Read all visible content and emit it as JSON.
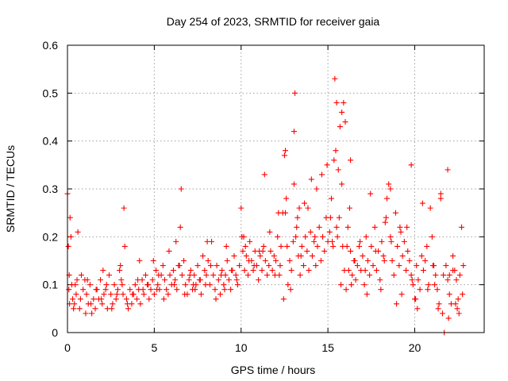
{
  "chart_data": {
    "type": "scatter",
    "title": "Day 254 of 2023, SRMTID for receiver gaia",
    "xlabel": "GPS time / hours",
    "ylabel": "SRMTID / TECUs",
    "xlim": [
      0,
      24
    ],
    "ylim": [
      0,
      0.6
    ],
    "xticks": [
      0,
      5,
      10,
      15,
      20
    ],
    "yticks": [
      0,
      0.1,
      0.2,
      0.3,
      0.4,
      0.5,
      0.6
    ],
    "grid": true,
    "marker": "+",
    "color": "#ff0000",
    "series": [
      {
        "name": "SRMTID",
        "x": [
          0.0,
          0.05,
          0.1,
          0.15,
          0.2,
          0.25,
          0.3,
          0.4,
          0.5,
          0.6,
          0.7,
          0.8,
          0.9,
          1.0,
          1.1,
          1.2,
          1.3,
          1.4,
          1.5,
          1.6,
          1.7,
          1.8,
          1.9,
          2.0,
          2.1,
          2.2,
          2.3,
          2.4,
          2.5,
          2.6,
          2.7,
          2.8,
          2.9,
          3.0,
          3.1,
          3.2,
          3.25,
          3.3,
          3.4,
          3.5,
          3.6,
          3.7,
          3.8,
          3.9,
          4.0,
          4.1,
          4.2,
          4.3,
          4.4,
          4.5,
          4.6,
          4.7,
          4.8,
          4.9,
          5.0,
          5.1,
          5.2,
          5.3,
          5.4,
          5.5,
          5.6,
          5.7,
          5.8,
          5.9,
          6.0,
          6.1,
          6.2,
          6.3,
          6.4,
          6.5,
          6.55,
          6.6,
          6.7,
          6.8,
          6.9,
          7.0,
          7.1,
          7.2,
          7.3,
          7.4,
          7.5,
          7.6,
          7.7,
          7.8,
          7.9,
          8.0,
          8.1,
          8.2,
          8.3,
          8.4,
          8.5,
          8.6,
          8.7,
          8.8,
          8.9,
          9.0,
          9.1,
          9.2,
          9.3,
          9.4,
          9.5,
          9.6,
          9.7,
          9.8,
          9.9,
          10.0,
          10.05,
          10.1,
          10.2,
          10.3,
          10.4,
          10.5,
          10.6,
          10.7,
          10.8,
          10.9,
          11.0,
          11.1,
          11.2,
          11.3,
          11.4,
          11.5,
          11.6,
          11.7,
          11.8,
          11.9,
          12.0,
          12.1,
          12.2,
          12.3,
          12.4,
          12.5,
          12.6,
          12.7,
          12.8,
          12.9,
          13.0,
          13.05,
          13.1,
          13.2,
          13.3,
          13.4,
          13.5,
          13.6,
          13.7,
          13.8,
          13.9,
          14.0,
          14.1,
          14.2,
          14.3,
          14.4,
          14.5,
          14.6,
          14.7,
          14.8,
          14.9,
          15.0,
          15.1,
          15.2,
          15.3,
          15.35,
          15.4,
          15.5,
          15.6,
          15.7,
          15.8,
          15.9,
          16.0,
          16.1,
          16.2,
          16.3,
          16.4,
          16.5,
          16.6,
          16.7,
          16.8,
          16.9,
          17.0,
          17.1,
          17.2,
          17.3,
          17.4,
          17.5,
          17.6,
          17.7,
          17.8,
          17.9,
          18.0,
          18.1,
          18.2,
          18.3,
          18.4,
          18.5,
          18.6,
          18.7,
          18.8,
          18.9,
          19.0,
          19.1,
          19.2,
          19.3,
          19.4,
          19.5,
          19.6,
          19.7,
          19.8,
          19.9,
          20.0,
          20.1,
          20.2,
          20.3,
          20.4,
          20.5,
          20.6,
          20.7,
          20.8,
          20.9,
          21.0,
          21.1,
          21.2,
          21.3,
          21.4,
          21.5,
          21.6,
          21.7,
          21.8,
          21.9,
          22.0,
          22.1,
          22.2,
          22.3,
          22.4,
          22.5,
          22.6,
          22.7,
          22.8,
          0.08,
          0.35,
          0.55,
          0.75,
          1.05,
          1.35,
          1.65,
          1.95,
          2.25,
          2.55,
          2.85,
          3.15,
          3.45,
          3.75,
          4.05,
          4.35,
          4.65,
          4.95,
          5.25,
          5.55,
          5.85,
          6.15,
          6.45,
          6.75,
          7.05,
          7.35,
          7.65,
          7.95,
          8.25,
          8.55,
          8.85,
          9.15,
          9.45,
          9.75,
          10.15,
          10.45,
          10.75,
          11.05,
          11.35,
          11.65,
          11.95,
          12.25,
          12.45,
          12.55,
          12.65,
          12.85,
          13.15,
          13.25,
          13.45,
          13.65,
          13.85,
          14.05,
          14.35,
          14.65,
          14.95,
          15.15,
          15.45,
          15.55,
          15.65,
          15.75,
          15.85,
          15.95,
          16.05,
          16.15,
          16.35,
          16.55,
          16.85,
          17.15,
          17.45,
          17.75,
          18.05,
          18.35,
          18.65,
          18.95,
          19.25,
          19.55,
          19.85,
          20.15,
          20.45,
          20.75,
          21.05,
          21.35,
          21.65,
          21.95,
          22.35,
          22.55,
          22.75,
          0.12,
          0.45,
          1.15,
          2.05,
          3.05,
          4.15,
          5.15,
          6.25,
          7.25,
          8.05,
          9.05,
          10.25,
          11.25,
          12.15,
          13.35,
          14.25,
          15.25,
          16.25,
          17.25,
          18.25,
          19.15,
          20.05,
          21.15,
          22.45,
          12.55,
          13.05,
          15.5,
          15.8,
          16.3,
          18.6,
          19.8,
          21.5,
          21.9,
          22.0,
          22.2
        ],
        "y": [
          0.29,
          0.18,
          0.12,
          0.24,
          0.2,
          0.1,
          0.07,
          0.06,
          0.08,
          0.21,
          0.05,
          0.12,
          0.09,
          0.11,
          0.08,
          0.06,
          0.1,
          0.04,
          0.07,
          0.05,
          0.09,
          0.07,
          0.11,
          0.06,
          0.08,
          0.09,
          0.05,
          0.12,
          0.08,
          0.06,
          0.1,
          0.07,
          0.09,
          0.13,
          0.11,
          0.08,
          0.26,
          0.18,
          0.07,
          0.05,
          0.09,
          0.06,
          0.08,
          0.1,
          0.07,
          0.09,
          0.06,
          0.11,
          0.08,
          0.12,
          0.1,
          0.07,
          0.09,
          0.11,
          0.08,
          0.13,
          0.1,
          0.09,
          0.12,
          0.14,
          0.11,
          0.09,
          0.08,
          0.12,
          0.1,
          0.13,
          0.11,
          0.09,
          0.14,
          0.22,
          0.3,
          0.12,
          0.15,
          0.1,
          0.08,
          0.11,
          0.13,
          0.09,
          0.12,
          0.1,
          0.14,
          0.11,
          0.08,
          0.16,
          0.13,
          0.12,
          0.15,
          0.1,
          0.19,
          0.12,
          0.09,
          0.14,
          0.11,
          0.08,
          0.13,
          0.1,
          0.12,
          0.15,
          0.11,
          0.09,
          0.13,
          0.16,
          0.12,
          0.1,
          0.14,
          0.26,
          0.2,
          0.17,
          0.13,
          0.16,
          0.12,
          0.19,
          0.15,
          0.13,
          0.17,
          0.14,
          0.11,
          0.16,
          0.13,
          0.18,
          0.15,
          0.12,
          0.14,
          0.17,
          0.13,
          0.16,
          0.15,
          0.2,
          0.12,
          0.18,
          0.25,
          0.37,
          0.28,
          0.1,
          0.15,
          0.13,
          0.19,
          0.31,
          0.5,
          0.22,
          0.16,
          0.12,
          0.18,
          0.14,
          0.2,
          0.17,
          0.13,
          0.21,
          0.16,
          0.19,
          0.14,
          0.18,
          0.22,
          0.15,
          0.2,
          0.17,
          0.24,
          0.19,
          0.21,
          0.28,
          0.18,
          0.36,
          0.53,
          0.22,
          0.34,
          0.43,
          0.31,
          0.48,
          0.44,
          0.18,
          0.13,
          0.17,
          0.12,
          0.15,
          0.11,
          0.14,
          0.18,
          0.13,
          0.16,
          0.1,
          0.2,
          0.15,
          0.12,
          0.18,
          0.14,
          0.22,
          0.13,
          0.17,
          0.11,
          0.19,
          0.16,
          0.23,
          0.28,
          0.31,
          0.2,
          0.15,
          0.12,
          0.25,
          0.18,
          0.14,
          0.21,
          0.16,
          0.19,
          0.13,
          0.17,
          0.15,
          0.12,
          0.1,
          0.07,
          0.14,
          0.11,
          0.09,
          0.16,
          0.13,
          0.15,
          0.18,
          0.1,
          0.26,
          0.2,
          0.14,
          0.12,
          0.09,
          0.06,
          0.29,
          0.04,
          0.0,
          0.14,
          0.11,
          0.08,
          0.06,
          0.16,
          0.13,
          0.11,
          0.07,
          0.12,
          0.22,
          0.14,
          0.09,
          0.05,
          0.11,
          0.07,
          0.04,
          0.06,
          0.09,
          0.07,
          0.1,
          0.05,
          0.08,
          0.1,
          0.06,
          0.08,
          0.11,
          0.09,
          0.1,
          0.15,
          0.12,
          0.07,
          0.17,
          0.1,
          0.14,
          0.08,
          0.12,
          0.09,
          0.11,
          0.1,
          0.14,
          0.07,
          0.12,
          0.18,
          0.13,
          0.11,
          0.2,
          0.15,
          0.14,
          0.17,
          0.33,
          0.21,
          0.12,
          0.14,
          0.07,
          0.25,
          0.18,
          0.09,
          0.2,
          0.24,
          0.16,
          0.27,
          0.26,
          0.32,
          0.3,
          0.33,
          0.35,
          0.24,
          0.38,
          0.2,
          0.24,
          0.1,
          0.18,
          0.13,
          0.09,
          0.22,
          0.1,
          0.15,
          0.19,
          0.13,
          0.29,
          0.17,
          0.09,
          0.24,
          0.19,
          0.06,
          0.08,
          0.22,
          0.11,
          0.05,
          0.27,
          0.09,
          0.14,
          0.05,
          0.12,
          0.03,
          0.06,
          0.04,
          0.08,
          0.06,
          0.1,
          0.11,
          0.13,
          0.14,
          0.15,
          0.09,
          0.19,
          0.1,
          0.19,
          0.09,
          0.18,
          0.17,
          0.25,
          0.26,
          0.2,
          0.19,
          0.26,
          0.08,
          0.15,
          0.22,
          0.07,
          0.1,
          0.05,
          0.38,
          0.42,
          0.48,
          0.46,
          0.36,
          0.3,
          0.35,
          0.28,
          0.34,
          0.12,
          0.13
        ]
      }
    ]
  }
}
